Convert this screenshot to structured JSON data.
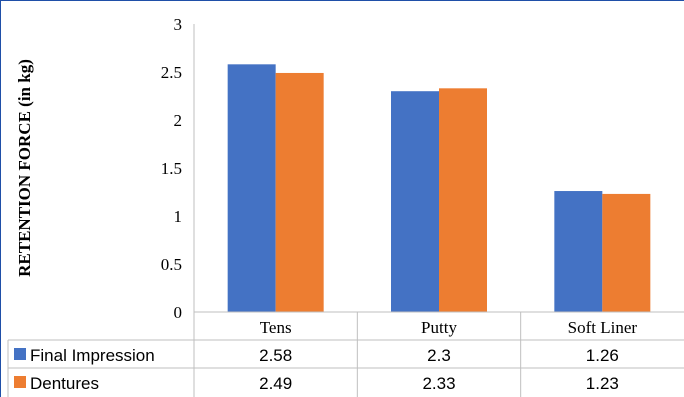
{
  "chart_data": {
    "type": "bar",
    "categories": [
      "Tens",
      "Putty",
      "Soft Liner"
    ],
    "series": [
      {
        "name": "Final Impression",
        "values": [
          2.58,
          2.3,
          1.26
        ],
        "color": "#4472c4",
        "labels": [
          "2.58",
          "2.3",
          "1.26"
        ]
      },
      {
        "name": "Dentures",
        "values": [
          2.49,
          2.33,
          1.23
        ],
        "color": "#ed7d31",
        "labels": [
          "2.49",
          "2.33",
          "1.23"
        ]
      }
    ],
    "ylabel": "RETENTION FORCE (in kg)",
    "ylim": [
      0,
      3
    ],
    "yticks": [
      "0",
      "0.5",
      "1",
      "1.5",
      "2",
      "2.5",
      "3"
    ],
    "ytick_values": [
      0,
      0.5,
      1,
      1.5,
      2,
      2.5,
      3
    ],
    "grid": false,
    "legend": "data-table"
  }
}
